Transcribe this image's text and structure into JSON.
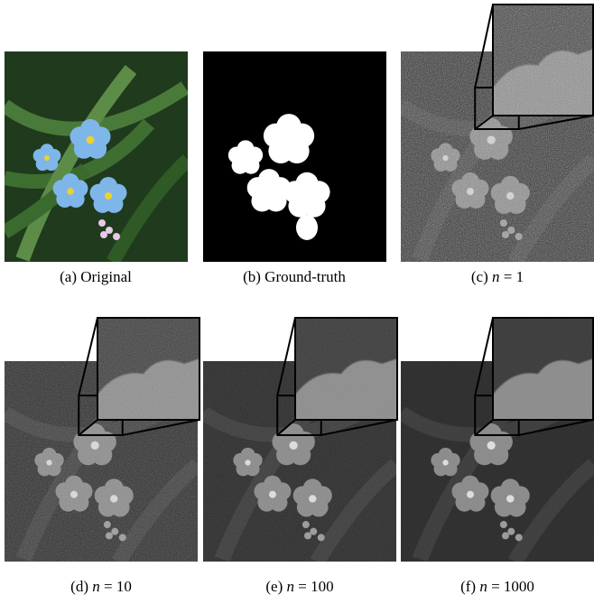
{
  "figure": {
    "panels": [
      {
        "tag": "(a)",
        "caption": "Original"
      },
      {
        "tag": "(b)",
        "caption": "Ground-truth"
      },
      {
        "tag": "(c)",
        "variable": "n",
        "relation": "= 1"
      },
      {
        "tag": "(d)",
        "variable": "n",
        "relation": "= 10"
      },
      {
        "tag": "(e)",
        "variable": "n",
        "relation": "= 100"
      },
      {
        "tag": "(f)",
        "variable": "n",
        "relation": "= 1000"
      }
    ]
  }
}
